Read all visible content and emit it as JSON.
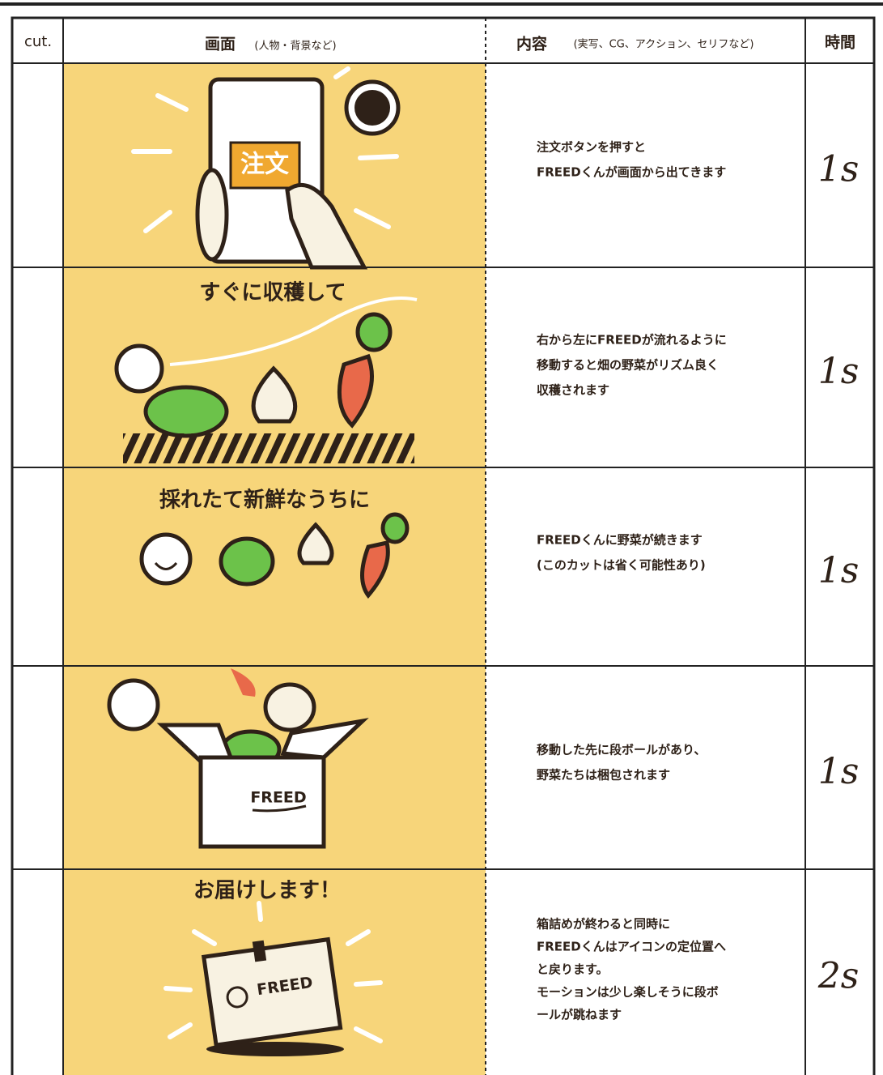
{
  "header": {
    "cut": "cut.",
    "scene": "画面",
    "scene_note": "(人物・背景など)",
    "content": "内容",
    "content_note": "(実写、CG、アクション、セリフなど)",
    "time": "時間"
  },
  "rows": [
    {
      "scene_texts": [
        "注文"
      ],
      "description": [
        "注文ボタンを押すと",
        "FREEDくんが画面から出てきます"
      ],
      "time": "1s"
    },
    {
      "scene_texts": [
        "すぐに収穫して"
      ],
      "description": [
        "右から左にFREEDが流れるように",
        "移動すると畑の野菜がリズム良く",
        "収穫されます"
      ],
      "time": "1s"
    },
    {
      "scene_texts": [
        "採れたて新鮮なうちに"
      ],
      "description": [
        "FREEDくんに野菜が続きます",
        "(このカットは省く可能性あり)"
      ],
      "time": "1s"
    },
    {
      "scene_texts": [
        "FREED"
      ],
      "description": [
        "移動した先に段ボールがあり、",
        "野菜たちは梱包されます"
      ],
      "time": "1s"
    },
    {
      "scene_texts": [
        "お届けします！",
        "FREED"
      ],
      "description": [
        "箱詰めが終わると同時に",
        "FREEDくんはアイコンの定位置へ",
        "と戻ります。",
        "モーションは少し楽しそうに段ボ",
        "ールが跳ねます"
      ],
      "time": "2s"
    }
  ]
}
